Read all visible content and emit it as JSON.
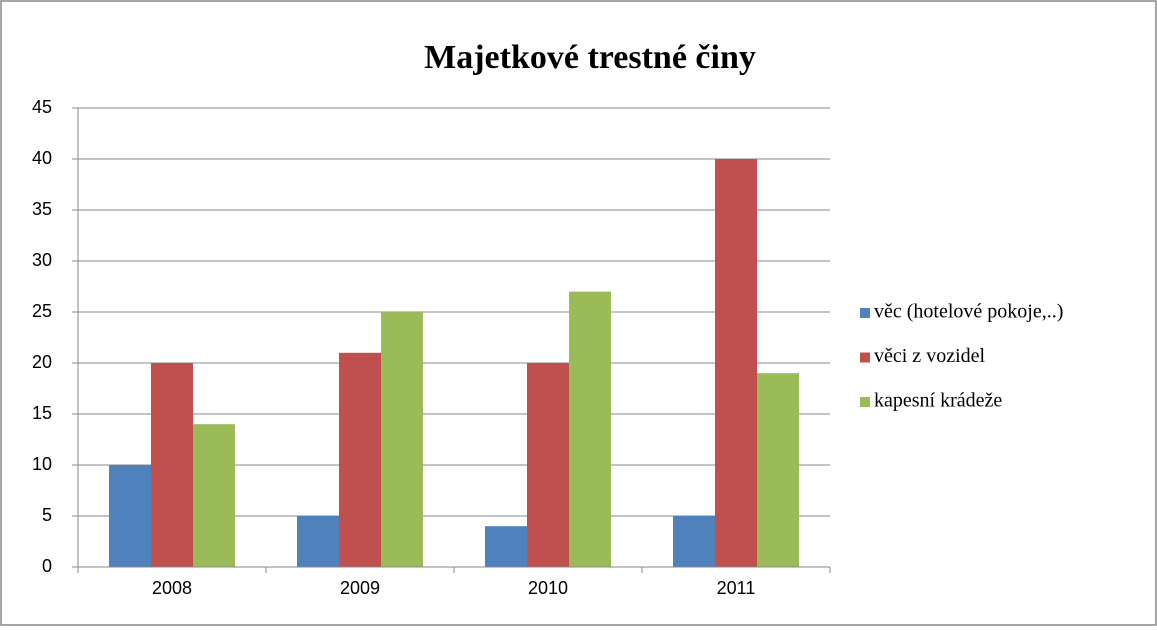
{
  "chart_data": {
    "type": "bar",
    "title": "Majetkové trestné činy",
    "categories": [
      "2008",
      "2009",
      "2010",
      "2011"
    ],
    "series": [
      {
        "name": "věc (hotelové pokoje,..)",
        "color": "#4f81bd",
        "values": [
          10,
          5,
          4,
          5
        ]
      },
      {
        "name": "věci z vozidel",
        "color": "#c0504d",
        "values": [
          20,
          21,
          20,
          40
        ]
      },
      {
        "name": "kapesní krádeže",
        "color": "#9bbb59",
        "values": [
          14,
          25,
          27,
          19
        ]
      }
    ],
    "ylim": [
      0,
      45
    ],
    "yticks": [
      0,
      5,
      10,
      15,
      20,
      25,
      30,
      35,
      40,
      45
    ],
    "grid": true,
    "legend": "right"
  }
}
